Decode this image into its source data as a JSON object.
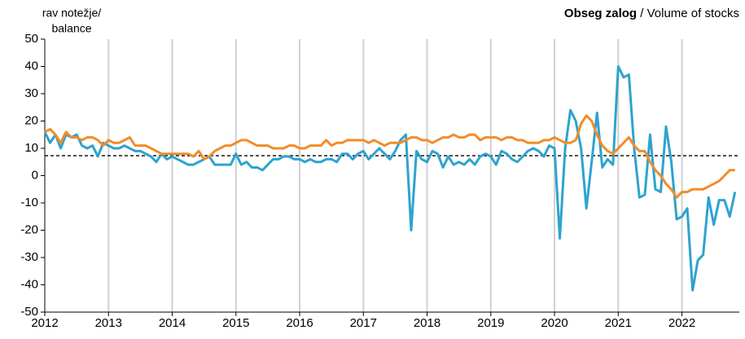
{
  "chart_data": {
    "type": "line",
    "title": "Obseg zalog",
    "subtitle": "/ Volume of stocks",
    "ylabel": [
      "rav notežje/",
      "balance"
    ],
    "x": [
      2012,
      2012.083,
      2012.167,
      2012.25,
      2012.333,
      2012.417,
      2012.5,
      2012.583,
      2012.667,
      2012.75,
      2012.833,
      2012.917,
      2013,
      2013.083,
      2013.167,
      2013.25,
      2013.333,
      2013.417,
      2013.5,
      2013.583,
      2013.667,
      2013.75,
      2013.833,
      2013.917,
      2014,
      2014.083,
      2014.167,
      2014.25,
      2014.333,
      2014.417,
      2014.5,
      2014.583,
      2014.667,
      2014.75,
      2014.833,
      2014.917,
      2015,
      2015.083,
      2015.167,
      2015.25,
      2015.333,
      2015.417,
      2015.5,
      2015.583,
      2015.667,
      2015.75,
      2015.833,
      2015.917,
      2016,
      2016.083,
      2016.167,
      2016.25,
      2016.333,
      2016.417,
      2016.5,
      2016.583,
      2016.667,
      2016.75,
      2016.833,
      2016.917,
      2017,
      2017.083,
      2017.167,
      2017.25,
      2017.333,
      2017.417,
      2017.5,
      2017.583,
      2017.667,
      2017.75,
      2017.833,
      2017.917,
      2018,
      2018.083,
      2018.167,
      2018.25,
      2018.333,
      2018.417,
      2018.5,
      2018.583,
      2018.667,
      2018.75,
      2018.833,
      2018.917,
      2019,
      2019.083,
      2019.167,
      2019.25,
      2019.333,
      2019.417,
      2019.5,
      2019.583,
      2019.667,
      2019.75,
      2019.833,
      2019.917,
      2020,
      2020.083,
      2020.167,
      2020.25,
      2020.333,
      2020.417,
      2020.5,
      2020.583,
      2020.667,
      2020.75,
      2020.833,
      2020.917,
      2021,
      2021.083,
      2021.167,
      2021.25,
      2021.333,
      2021.417,
      2021.5,
      2021.583,
      2021.667,
      2021.75,
      2021.833,
      2021.917,
      2022,
      2022.083,
      2022.167,
      2022.25,
      2022.333,
      2022.417,
      2022.5,
      2022.583,
      2022.667,
      2022.75,
      2022.833
    ],
    "series": [
      {
        "color": "#2ea3cf",
        "values": [
          16,
          12,
          15,
          10,
          15,
          14,
          15,
          11,
          10,
          11,
          7,
          12,
          11,
          10,
          10,
          11,
          10,
          9,
          9,
          8,
          7,
          5,
          8,
          6,
          7,
          6,
          5,
          4,
          4,
          5,
          6,
          7,
          4,
          4,
          4,
          4,
          8,
          4,
          5,
          3,
          3,
          2,
          4,
          6,
          6,
          7,
          7,
          6,
          6,
          5,
          6,
          5,
          5,
          6,
          6,
          5,
          8,
          8,
          6,
          8,
          9,
          6,
          8,
          10,
          8,
          6,
          9,
          13,
          15,
          -20,
          9,
          6,
          5,
          9,
          8,
          3,
          7,
          4,
          5,
          4,
          6,
          4,
          7,
          8,
          7,
          4,
          9,
          8,
          6,
          5,
          7,
          9,
          10,
          9,
          7,
          11,
          10,
          -23,
          10,
          24,
          20,
          10,
          -12,
          5,
          23,
          3,
          6,
          4,
          40,
          36,
          37,
          10,
          -8,
          -7,
          15,
          -5,
          -6,
          18,
          5,
          -16,
          -15,
          -12,
          -42,
          -31,
          -29,
          -8,
          -18,
          -9,
          -9,
          -15,
          -6
        ]
      },
      {
        "color": "#f28c28",
        "values": [
          16,
          17,
          15,
          12,
          16,
          14,
          14,
          13,
          14,
          14,
          13,
          11,
          13,
          12,
          12,
          13,
          14,
          11,
          11,
          11,
          10,
          9,
          8,
          8,
          8,
          8,
          8,
          8,
          7,
          9,
          6,
          7,
          9,
          10,
          11,
          11,
          12,
          13,
          13,
          12,
          11,
          11,
          11,
          10,
          10,
          10,
          11,
          11,
          10,
          10,
          11,
          11,
          11,
          13,
          11,
          12,
          12,
          13,
          13,
          13,
          13,
          12,
          13,
          12,
          11,
          12,
          12,
          12,
          13,
          14,
          14,
          13,
          13,
          12,
          13,
          14,
          14,
          15,
          14,
          14,
          15,
          15,
          13,
          14,
          14,
          14,
          13,
          14,
          14,
          13,
          13,
          12,
          12,
          12,
          13,
          13,
          14,
          13,
          12,
          12,
          13,
          19,
          22,
          20,
          15,
          11,
          9,
          8,
          10,
          12,
          14,
          11,
          9,
          9,
          5,
          2,
          0,
          -3,
          -5,
          -8,
          -6,
          -6,
          -5,
          -5,
          -5,
          -4,
          -3,
          -2,
          0,
          2,
          2
        ]
      }
    ],
    "reference_line": 7.3,
    "xlim": [
      2012,
      2022.9
    ],
    "xticks": [
      2012,
      2013,
      2014,
      2015,
      2016,
      2017,
      2018,
      2019,
      2020,
      2021,
      2022
    ],
    "ylim": [
      -50,
      50
    ],
    "yticks": [
      -50,
      -40,
      -30,
      -20,
      -10,
      0,
      10,
      20,
      30,
      40,
      50
    ],
    "grid": "x"
  }
}
